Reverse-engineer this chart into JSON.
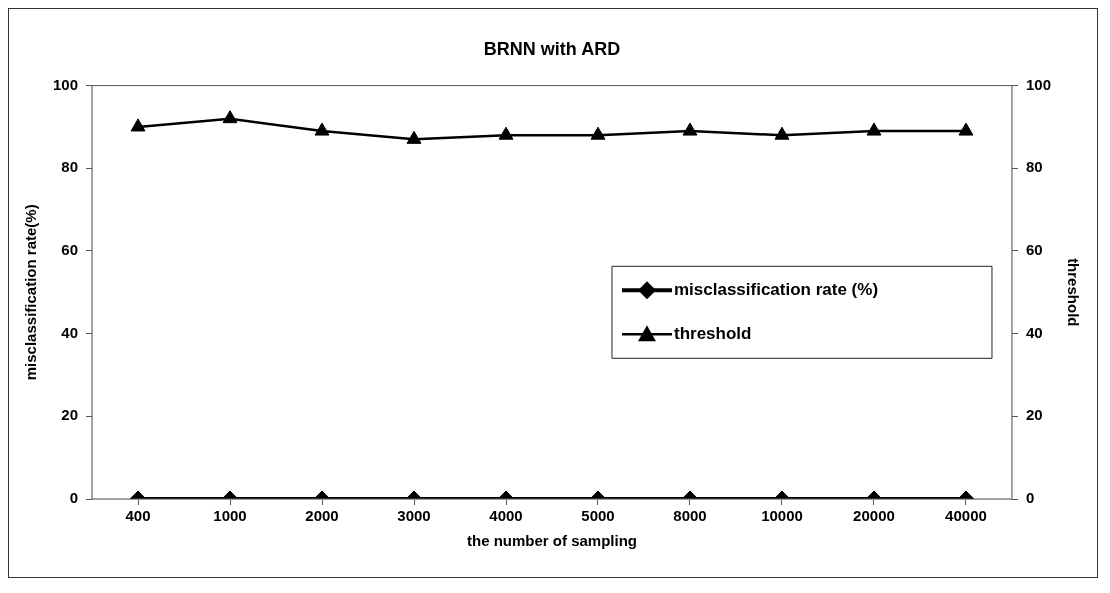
{
  "chart_data": {
    "type": "line",
    "title": "BRNN with ARD",
    "xlabel": "the number of sampling",
    "ylabel": "misclassification rate(%)",
    "y2label": "threshold",
    "categories": [
      "400",
      "1000",
      "2000",
      "3000",
      "4000",
      "5000",
      "8000",
      "10000",
      "20000",
      "40000"
    ],
    "series": [
      {
        "name": "misclassification rate (%)",
        "color": "#000000",
        "marker": "diamond",
        "values": [
          0,
          0,
          0,
          0,
          0,
          0,
          0,
          0,
          0,
          0
        ]
      },
      {
        "name": "threshold",
        "color": "#000000",
        "marker": "triangle",
        "axis": "y2",
        "values": [
          90,
          92,
          89,
          87,
          88,
          88,
          89,
          88,
          89,
          89
        ]
      }
    ],
    "ylim": [
      0,
      100
    ],
    "yticks": [
      0,
      20,
      40,
      60,
      80,
      100
    ],
    "y2lim": [
      0,
      100
    ],
    "y2ticks": [
      0,
      20,
      40,
      60,
      80,
      100
    ],
    "grid": false,
    "legend": "right",
    "line_style": "solid"
  }
}
